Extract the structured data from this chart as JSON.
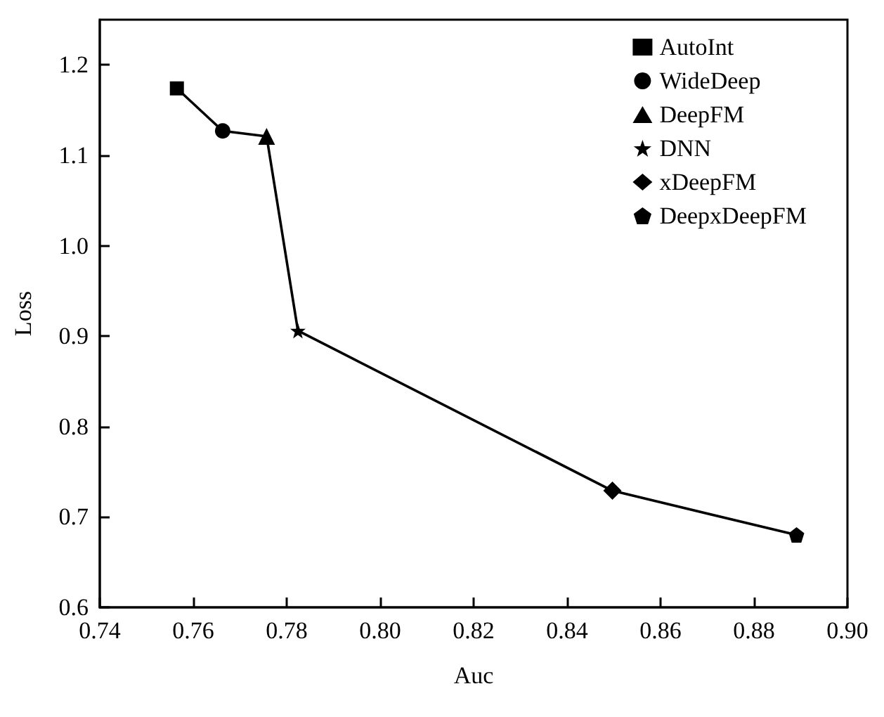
{
  "chart_data": {
    "type": "scatter",
    "xlabel": "Auc",
    "ylabel": "Loss",
    "xlim": [
      0.74,
      0.9
    ],
    "xticks": [
      {
        "value": 0.74,
        "label": "0.74"
      },
      {
        "value": 0.76,
        "label": "0.76"
      },
      {
        "value": 0.78,
        "label": "0.78"
      },
      {
        "value": 0.8,
        "label": "0.80"
      },
      {
        "value": 0.82,
        "label": "0.82"
      },
      {
        "value": 0.84,
        "label": "0.84"
      },
      {
        "value": 0.86,
        "label": "0.86"
      },
      {
        "value": 0.88,
        "label": "0.88"
      },
      {
        "value": 0.9,
        "label": "0.90"
      }
    ],
    "ylim": [
      0.6,
      1.25
    ],
    "yticks": [
      {
        "value": 0.6,
        "label": "0.6"
      },
      {
        "value": 0.7,
        "label": "0.7"
      },
      {
        "value": 0.8,
        "label": "0.8"
      },
      {
        "value": 0.9,
        "label": "0.9"
      },
      {
        "value": 1.0,
        "label": "1.0"
      },
      {
        "value": 1.1,
        "label": "1.1"
      },
      {
        "value": 1.2,
        "label": "1.2"
      }
    ],
    "grid": false,
    "legend": "top right",
    "series": [
      {
        "type": "line",
        "color": "#000000",
        "marker": "none",
        "line_style": "solid",
        "x": [
          0.7565,
          0.7663,
          0.7757,
          0.7824,
          0.8497,
          0.8891
        ],
        "values": [
          1.174,
          1.127,
          1.121,
          0.906,
          0.729,
          0.68
        ]
      },
      {
        "name": "AutoInt",
        "color": "#000000",
        "marker": "square",
        "x": [
          0.7565
        ],
        "values": [
          1.174
        ]
      },
      {
        "name": "WideDeep",
        "color": "#000000",
        "marker": "circle",
        "x": [
          0.7663
        ],
        "values": [
          1.127
        ]
      },
      {
        "name": "DeepFM",
        "color": "#000000",
        "marker": "triangle",
        "x": [
          0.7757
        ],
        "values": [
          1.121
        ]
      },
      {
        "name": "DNN",
        "color": "#000000",
        "marker": "star",
        "x": [
          0.7824
        ],
        "values": [
          0.906
        ]
      },
      {
        "name": "xDeepFM",
        "color": "#000000",
        "marker": "diamond",
        "x": [
          0.8497
        ],
        "values": [
          0.729
        ]
      },
      {
        "name": "DeepxDeepFM",
        "color": "#000000",
        "x": [
          0.8891
        ],
        "values": [
          0.68
        ]
      }
    ]
  }
}
